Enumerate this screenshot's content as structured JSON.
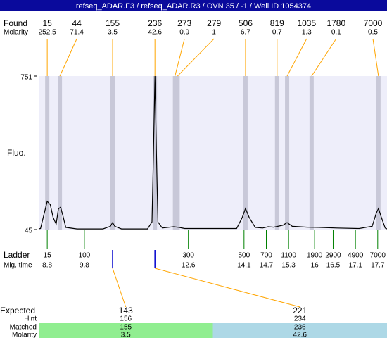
{
  "title": "refseq_ADAR.F3 / refseq_ADAR.R3 / OVN 35 / -1 / Well ID 1054374",
  "chart_data": {
    "type": "line",
    "y_label": "Fluo.",
    "ylim": [
      45,
      751
    ],
    "yticks": [
      45,
      751
    ],
    "xlim": [
      8.57,
      17.95
    ],
    "color": "#000000",
    "background": "#eeeefa",
    "x": [
      8.57,
      8.62,
      8.72,
      8.8,
      8.88,
      8.96,
      9.04,
      9.1,
      9.16,
      9.22,
      9.3,
      9.6,
      10.3,
      10.5,
      10.56,
      10.62,
      10.8,
      11.5,
      11.62,
      11.66,
      11.7,
      11.74,
      11.78,
      11.9,
      12.2,
      12.35,
      12.5,
      13.9,
      14.05,
      14.14,
      14.24,
      14.4,
      14.6,
      14.75,
      14.9,
      15.15,
      15.26,
      15.4,
      15.8,
      16.1,
      16.6,
      17.2,
      17.55,
      17.66,
      17.72,
      17.8,
      17.9,
      17.95
    ],
    "values": [
      48,
      50,
      120,
      175,
      160,
      100,
      70,
      140,
      148,
      110,
      55,
      48,
      48,
      60,
      77,
      60,
      48,
      48,
      80,
      400,
      751,
      400,
      80,
      52,
      58,
      55,
      50,
      50,
      100,
      142,
      100,
      55,
      52,
      58,
      56,
      65,
      77,
      60,
      56,
      55,
      52,
      50,
      60,
      120,
      142,
      100,
      52,
      48
    ],
    "found": {
      "label": "Found",
      "molarity_label": "Molarity",
      "sizes": [
        15,
        44,
        155,
        236,
        273,
        279,
        506,
        819,
        1035,
        1780,
        7000
      ],
      "molarity": [
        252.5,
        71.4,
        3.5,
        42.6,
        0.9,
        1,
        6.7,
        0.7,
        1.3,
        0.1,
        0.5
      ],
      "times": [
        8.8,
        9.14,
        10.56,
        11.7,
        12.24,
        12.31,
        14.14,
        14.99,
        15.26,
        15.92,
        17.72
      ],
      "band_color": "#c8c8d8",
      "line_color": "#ffa500"
    },
    "ladder": {
      "label": "Ladder",
      "time_label": "Mig. time",
      "sizes": [
        15,
        100,
        300,
        500,
        700,
        1100,
        1900,
        2900,
        4900,
        7000
      ],
      "times": [
        8.8,
        9.8,
        12.6,
        14.1,
        14.7,
        15.3,
        16,
        16.5,
        17.1,
        17.7
      ],
      "color": "#008000"
    },
    "expected": {
      "label": "Expected",
      "hint_label": "Hint",
      "matched_label": "Matched",
      "molarity_label": "Molarity",
      "sizes": [
        143,
        221
      ],
      "hint": [
        156,
        234
      ],
      "matched": [
        155,
        236
      ],
      "molarity": [
        3.5,
        42.6
      ],
      "colors": [
        "#90ee90",
        "#add8e6"
      ],
      "mark_color": "#0000cc"
    }
  }
}
